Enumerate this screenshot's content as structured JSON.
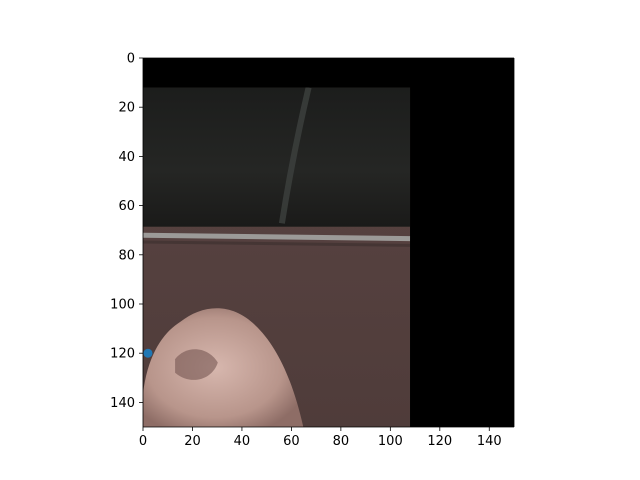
{
  "chart_data": {
    "type": "scatter",
    "title": "",
    "xlabel": "",
    "ylabel": "",
    "xlim": [
      0,
      150
    ],
    "ylim": [
      150,
      0
    ],
    "y_inverted": true,
    "grid": false,
    "xticks": [
      0,
      20,
      40,
      60,
      80,
      100,
      120,
      140
    ],
    "yticks": [
      0,
      20,
      40,
      60,
      80,
      100,
      120,
      140
    ],
    "image": {
      "description": "photo crop: dark curtain background, a horizontal grey rail, brownish wall, a pale hand in the lower-left; black padding on top and right",
      "extent_x": [
        0,
        108
      ],
      "extent_y": [
        12,
        150
      ],
      "padding_color": "#000000"
    },
    "series": [
      {
        "name": "point",
        "x": [
          2
        ],
        "y": [
          120
        ],
        "color": "#1f77b4"
      }
    ]
  }
}
